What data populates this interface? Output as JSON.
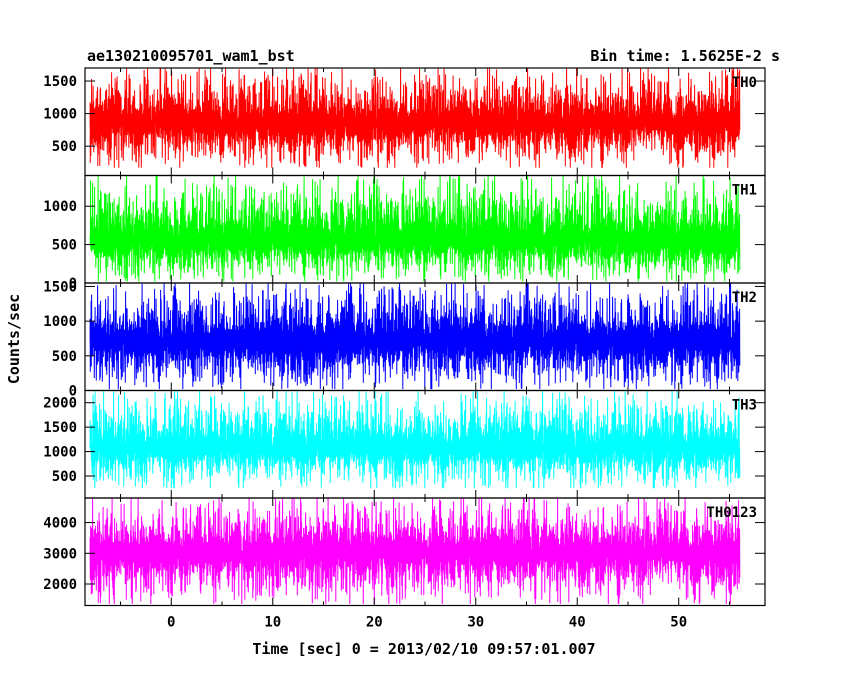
{
  "chart_data": {
    "type": "line",
    "title": "ae130210095701_wam1_bst",
    "subtitle": "Bin time: 1.5625E-2 s",
    "xlabel": "Time [sec] 0 = 2013/02/10 09:57:01.007",
    "ylabel": "Counts/sec",
    "xlim": [
      -8.5,
      58.5
    ],
    "x_ticks": [
      0,
      10,
      20,
      30,
      40,
      50
    ],
    "x_tick_labels": [
      "0",
      "10",
      "20",
      "30",
      "40",
      "50"
    ],
    "data_x_range": [
      -8.0,
      56.0
    ],
    "bin_time_s": 0.015625,
    "grid": false,
    "legend": "none",
    "panels": [
      {
        "label": "TH0",
        "color": "#ff0000",
        "ylim": [
          50,
          1700
        ],
        "y_ticks": [
          500,
          1000,
          1500
        ],
        "y_tick_labels": [
          "500",
          "1000",
          "1500"
        ],
        "mean": 850,
        "min": 170,
        "max": 1700
      },
      {
        "label": "TH1",
        "color": "#00ff00",
        "ylim": [
          0,
          1400
        ],
        "y_ticks": [
          0,
          500,
          1000
        ],
        "y_tick_labels": [
          "0",
          "500",
          "1000"
        ],
        "mean": 560,
        "min": 20,
        "max": 1400
      },
      {
        "label": "TH2",
        "color": "#0000ff",
        "ylim": [
          0,
          1550
        ],
        "y_ticks": [
          0,
          500,
          1000,
          1500
        ],
        "y_tick_labels": [
          "0",
          "500",
          "1000",
          "1500"
        ],
        "mean": 700,
        "min": 20,
        "max": 1550
      },
      {
        "label": "TH3",
        "color": "#00ffff",
        "ylim": [
          50,
          2250
        ],
        "y_ticks": [
          500,
          1000,
          1500,
          2000
        ],
        "y_tick_labels": [
          "500",
          "1000",
          "1500",
          "2000"
        ],
        "mean": 1080,
        "min": 250,
        "max": 2250
      },
      {
        "label": "TH0123",
        "color": "#ff00ff",
        "ylim": [
          1300,
          4800
        ],
        "y_ticks": [
          2000,
          3000,
          4000
        ],
        "y_tick_labels": [
          "2000",
          "3000",
          "4000"
        ],
        "mean": 3000,
        "min": 1350,
        "max": 4800
      }
    ]
  }
}
